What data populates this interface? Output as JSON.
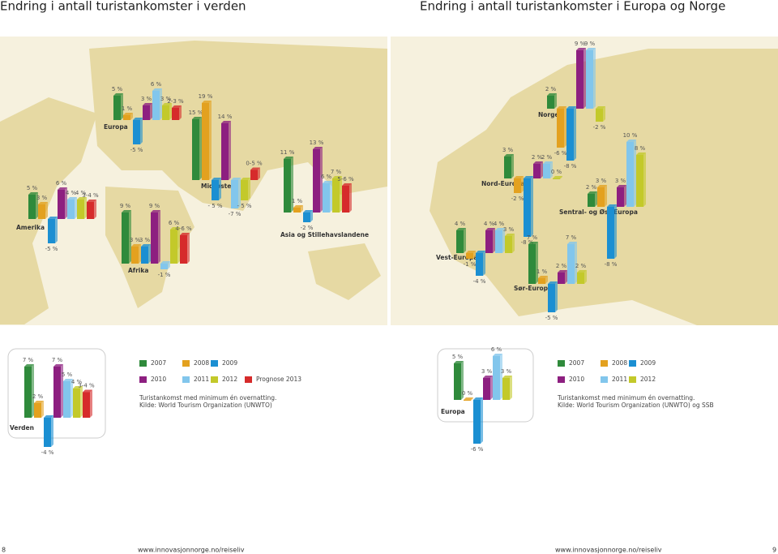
{
  "left": {
    "title": "Endring i antall turistankomster i verden",
    "page_number": "8",
    "url": "www.innovasjonnorge.no/reiseliv",
    "notes": [
      "Turistankomst med minimum én overnatting.",
      "Kilde: World Tourism Organization (UNWTO)"
    ]
  },
  "right": {
    "title": "Endring i antall turistankomster i Europa og Norge",
    "page_number": "9",
    "url": "www.innovasjonnorge.no/reiseliv",
    "notes": [
      "Turistankomst med minimum én overnatting.",
      "Kilde: World Tourism Organization (UNWTO) og SSB"
    ]
  },
  "legend": [
    {
      "name": "2007",
      "color": "#2f8a3b"
    },
    {
      "name": "2008",
      "color": "#e3a11f"
    },
    {
      "name": "2009",
      "color": "#1b8fd2"
    },
    {
      "name": "2010",
      "color": "#8d1f80"
    },
    {
      "name": "2011",
      "color": "#82c6ec"
    },
    {
      "name": "2012",
      "color": "#c3c92a"
    },
    {
      "name": "Prognose 2013",
      "color": "#d62b2b"
    }
  ],
  "chart_data": [
    {
      "type": "bar",
      "title": "Europa",
      "values": [
        5,
        1,
        -5,
        3,
        6,
        3,
        2.5
      ],
      "value_labels": [
        "5 %",
        "1 %",
        "-5 %",
        "3 %",
        "6 %",
        "3 %",
        "2-3 %"
      ]
    },
    {
      "type": "bar",
      "title": "Midtøsten",
      "values": [
        15,
        19,
        -5,
        14,
        -7,
        -5,
        2.5
      ],
      "value_labels": [
        "15 %",
        "19 %",
        "- 5 %",
        "14 %",
        "-7 %",
        "- 5 %",
        "0-5 %"
      ]
    },
    {
      "type": "bar",
      "title": "Asia og Stillehavslandene",
      "values": [
        11,
        1,
        -2,
        13,
        6,
        7,
        5.5
      ],
      "value_labels": [
        "11 %",
        "1 %",
        "-2 %",
        "13 %",
        "6 %",
        "7 %",
        "5-6 %"
      ]
    },
    {
      "type": "bar",
      "title": "Amerika",
      "values": [
        5,
        3,
        -5,
        6,
        4,
        4,
        3.5
      ],
      "value_labels": [
        "5 %",
        "3 %",
        "-5 %",
        "6 %",
        "4 %",
        "4 %",
        "3-4 %"
      ]
    },
    {
      "type": "bar",
      "title": "Afrika",
      "values": [
        9,
        3,
        3,
        9,
        -1,
        6,
        5
      ],
      "value_labels": [
        "9 %",
        "3 %",
        "3 %",
        "9 %",
        "-1 %",
        "6 %",
        "4-6 %"
      ]
    },
    {
      "type": "bar",
      "title": "Verden",
      "values": [
        7,
        2,
        -4,
        7,
        5,
        4,
        3.5
      ],
      "value_labels": [
        "7 %",
        "2 %",
        "-4 %",
        "7 %",
        "5 %",
        "4 %",
        "3-4 %"
      ]
    },
    {
      "type": "bar",
      "title": "Norge",
      "values": [
        2,
        -6,
        -8,
        9,
        9,
        -2
      ],
      "value_labels": [
        "2 %",
        "-6 %",
        "-8 %",
        "9 %",
        "9 %",
        "-2 %"
      ]
    },
    {
      "type": "bar",
      "title": "Nord-Europa",
      "values": [
        3,
        -2,
        -8,
        2,
        2,
        0
      ],
      "value_labels": [
        "3 %",
        "-2 %",
        "-8 %",
        "2 %",
        "2 %",
        "0 %"
      ]
    },
    {
      "type": "bar",
      "title": "Vest-Europa",
      "values": [
        4,
        -1,
        -4,
        4,
        4,
        3
      ],
      "value_labels": [
        "4 %",
        "-1 %",
        "-4 %",
        "4 %",
        "4 %",
        "3 %"
      ]
    },
    {
      "type": "bar",
      "title": "Sør-Europa",
      "values": [
        7,
        1,
        -5,
        2,
        7,
        2
      ],
      "value_labels": [
        "7 %",
        "1 %",
        "-5 %",
        "2 %",
        "7 %",
        "2 %"
      ]
    },
    {
      "type": "bar",
      "title": "Sentral- og Øst-Europa",
      "values": [
        2,
        3,
        -8,
        3,
        10,
        8
      ],
      "value_labels": [
        "2 %",
        "3 %",
        "-8 %",
        "3 %",
        "10 %",
        "8 %"
      ]
    },
    {
      "type": "bar",
      "title": "Europa",
      "values": [
        5,
        0,
        -6,
        3,
        6,
        3
      ],
      "value_labels": [
        "5 %",
        "0 %",
        "-6 %",
        "3 %",
        "6 %",
        "3 %"
      ]
    }
  ]
}
